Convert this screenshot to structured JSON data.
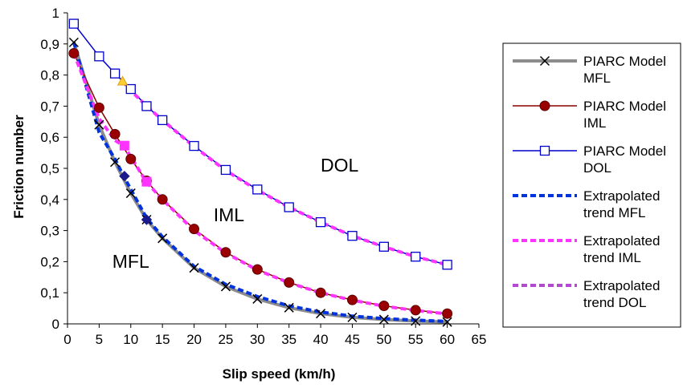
{
  "chart_data": {
    "type": "line",
    "title": "",
    "xlabel": "Slip speed (km/h)",
    "ylabel": "Friction number",
    "xlim": [
      0,
      65
    ],
    "ylim": [
      0,
      1
    ],
    "x_ticks": [
      "0",
      "5",
      "10",
      "15",
      "20",
      "25",
      "30",
      "35",
      "40",
      "45",
      "50",
      "55",
      "60",
      "65"
    ],
    "y_ticks": [
      "0",
      "0,1",
      "0,2",
      "0,3",
      "0,4",
      "0,5",
      "0,6",
      "0,7",
      "0,8",
      "0,9",
      "1"
    ],
    "grid": false,
    "legend_position": "right",
    "annotations": [
      {
        "text": "DOL",
        "x": 43,
        "y": 0.49
      },
      {
        "text": "IML",
        "x": 25.5,
        "y": 0.33
      },
      {
        "text": "MFL",
        "x": 10,
        "y": 0.18
      }
    ],
    "series": [
      {
        "legend": [
          "PIARC Model",
          "MFL"
        ],
        "color": "#8c8c8c",
        "style": "solid",
        "width": 4,
        "marker": "x",
        "marker_color": "#000000",
        "x": [
          1,
          5,
          7.5,
          10,
          12.5,
          15,
          20,
          25,
          30,
          35,
          40,
          45,
          50,
          55,
          60
        ],
        "y": [
          0.905,
          0.64,
          0.52,
          0.42,
          0.335,
          0.275,
          0.18,
          0.12,
          0.08,
          0.052,
          0.033,
          0.021,
          0.014,
          0.009,
          0.006
        ]
      },
      {
        "legend": [
          "PIARC Model",
          "IML"
        ],
        "color": "#8b0000",
        "style": "solid",
        "width": 1.5,
        "marker": "circle",
        "marker_color": "#9b0000",
        "x": [
          1,
          5,
          7.5,
          10,
          12.5,
          15,
          20,
          25,
          30,
          35,
          40,
          45,
          50,
          55,
          60
        ],
        "y": [
          0.87,
          0.695,
          0.61,
          0.53,
          0.46,
          0.4,
          0.305,
          0.23,
          0.175,
          0.133,
          0.1,
          0.077,
          0.058,
          0.044,
          0.033
        ]
      },
      {
        "legend": [
          "PIARC Model",
          "DOL"
        ],
        "color": "#0000cc",
        "style": "solid",
        "width": 1.5,
        "marker": "square",
        "marker_color": "#0000cc",
        "x": [
          1,
          5,
          7.5,
          10,
          12.5,
          15,
          20,
          25,
          30,
          35,
          40,
          45,
          50,
          55,
          60
        ],
        "y": [
          0.965,
          0.86,
          0.805,
          0.755,
          0.7,
          0.655,
          0.572,
          0.495,
          0.432,
          0.375,
          0.327,
          0.283,
          0.248,
          0.216,
          0.19
        ]
      },
      {
        "legend": [
          "Extrapolated",
          "trend MFL"
        ],
        "color": "#0033dd",
        "style": "dashed",
        "width": 4,
        "marker": "diamond",
        "marker_color": "#1a1a8c",
        "x": [
          1,
          5,
          7.5,
          9,
          12.5,
          15,
          20,
          25,
          30,
          35,
          40,
          45,
          50,
          55,
          60
        ],
        "y": [
          0.905,
          0.615,
          0.53,
          0.47,
          0.34,
          0.28,
          0.185,
          0.127,
          0.088,
          0.058,
          0.038,
          0.025,
          0.017,
          0.012,
          0.008
        ],
        "marker_points": [
          {
            "x": 9,
            "y": 0.475
          },
          {
            "x": 12.5,
            "y": 0.335
          }
        ]
      },
      {
        "legend": [
          "Extrapolated",
          "trend IML"
        ],
        "color": "#ff33ff",
        "style": "dashed",
        "width": 4,
        "marker": "square",
        "marker_color": "#ff33ff",
        "x": [
          1,
          5,
          7.5,
          9,
          12.5,
          15,
          20,
          25,
          30,
          35,
          40,
          45,
          50,
          55,
          60
        ],
        "y": [
          0.87,
          0.66,
          0.59,
          0.57,
          0.455,
          0.4,
          0.3,
          0.228,
          0.173,
          0.132,
          0.1,
          0.076,
          0.057,
          0.043,
          0.032
        ],
        "marker_points": [
          {
            "x": 9,
            "y": 0.573
          },
          {
            "x": 12.5,
            "y": 0.457
          }
        ]
      },
      {
        "legend": [
          "Extrapolated",
          "trend DOL"
        ],
        "color": "#ff33ff",
        "style": "dashed",
        "width": 4,
        "marker": "triangle",
        "marker_color": "#ffcc33",
        "legend_color": "#b24ad0",
        "x": [
          8.7,
          10,
          12.5,
          15,
          20,
          25,
          30,
          35,
          40,
          45,
          50,
          55,
          60
        ],
        "y": [
          0.78,
          0.75,
          0.7,
          0.655,
          0.57,
          0.493,
          0.43,
          0.375,
          0.327,
          0.283,
          0.248,
          0.216,
          0.19
        ],
        "marker_points": [
          {
            "x": 8.7,
            "y": 0.78
          }
        ]
      }
    ]
  }
}
